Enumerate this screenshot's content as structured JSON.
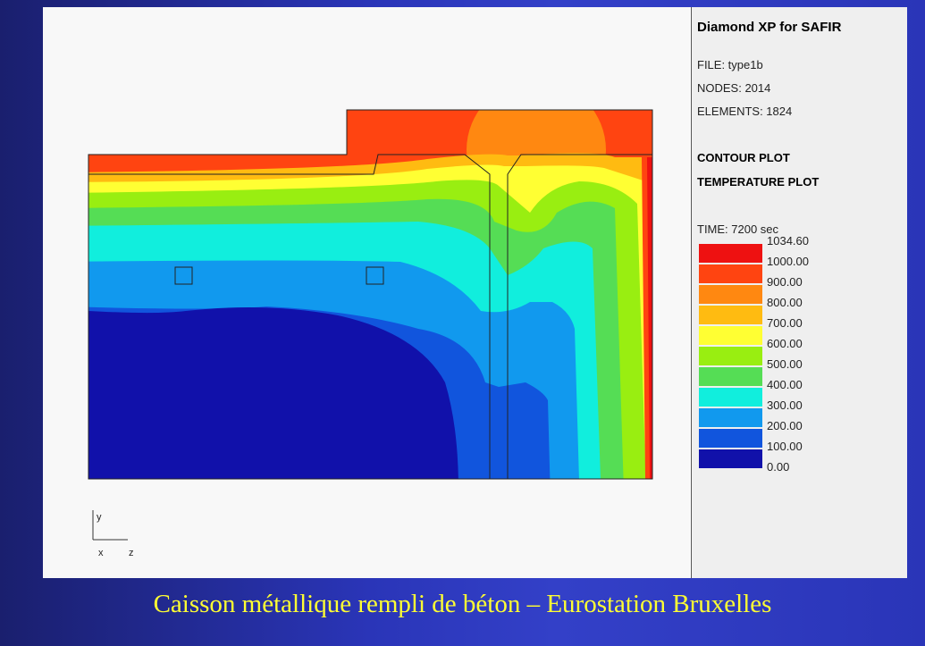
{
  "app": {
    "title": "Diamond XP for SAFIR"
  },
  "file_info": {
    "file": "FILE: type1b",
    "nodes": "NODES: 2014",
    "elements": "ELEMENTS: 1824"
  },
  "plot_info": {
    "mode": "CONTOUR PLOT",
    "variable": "TEMPERATURE PLOT"
  },
  "legend": {
    "time": "TIME: 7200 sec",
    "max_label": "1034.60",
    "items": [
      {
        "value": "1000.00",
        "color": "#ee1111"
      },
      {
        "value": "900.00",
        "color": "#ff4411"
      },
      {
        "value": "800.00",
        "color": "#ff8811"
      },
      {
        "value": "700.00",
        "color": "#ffbb11"
      },
      {
        "value": "600.00",
        "color": "#ffff33"
      },
      {
        "value": "500.00",
        "color": "#99ee11"
      },
      {
        "value": "400.00",
        "color": "#55dd55"
      },
      {
        "value": "300.00",
        "color": "#11eedd"
      },
      {
        "value": "200.00",
        "color": "#1199ee"
      },
      {
        "value": "100.00",
        "color": "#1155dd"
      },
      {
        "value": "0.00",
        "color": "#1111aa"
      }
    ]
  },
  "axes": {
    "y": "y",
    "x": "x",
    "z": "z"
  },
  "caption": "Caisson métallique rempli de béton – Eurostation Bruxelles"
}
